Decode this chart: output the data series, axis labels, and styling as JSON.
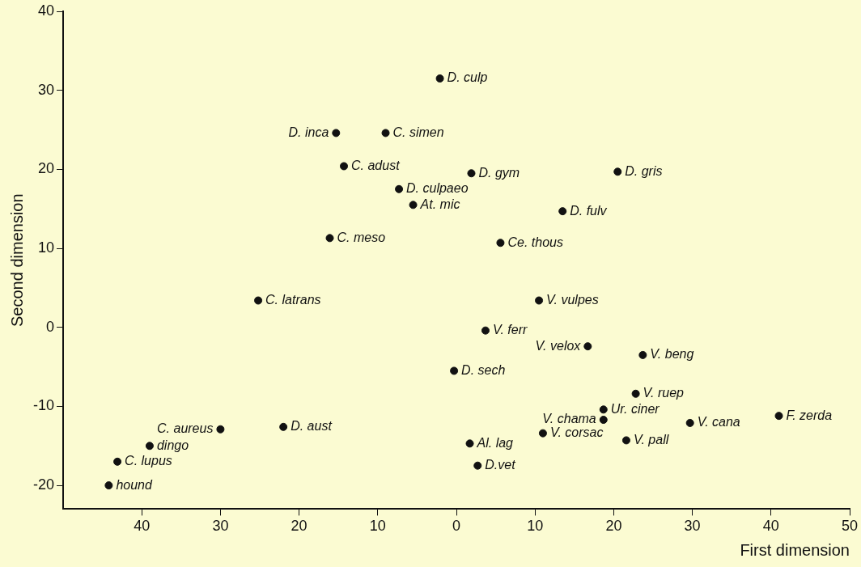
{
  "chart_data": {
    "type": "scatter",
    "xlabel": "First dimension",
    "ylabel": "Second dimension",
    "x": [
      -2.1,
      -15.3,
      -9.0,
      -14.3,
      1.9,
      20.5,
      -7.3,
      -5.5,
      13.5,
      -16.1,
      5.6,
      -25.2,
      10.5,
      3.7,
      16.7,
      23.7,
      -0.3,
      22.8,
      18.7,
      41.0,
      18.7,
      29.7,
      -30.0,
      -22.0,
      11.0,
      21.6,
      1.7,
      -39.0,
      2.7,
      -43.1,
      -44.2
    ],
    "series": [
      {
        "color": "#111111",
        "values": [
          31.5,
          24.6,
          24.6,
          20.4,
          19.5,
          19.7,
          17.5,
          15.5,
          14.7,
          11.3,
          10.7,
          3.4,
          3.4,
          -0.4,
          -2.4,
          -3.5,
          -5.5,
          -8.4,
          -10.4,
          -11.2,
          -11.7,
          -12.1,
          -12.9,
          -12.6,
          -13.4,
          -14.3,
          -14.7,
          -15.0,
          -17.5,
          -17.0,
          -20.0
        ]
      }
    ],
    "annotations": [
      {
        "text": "D. culp",
        "x": -2.1,
        "y": 31.5
      },
      {
        "text": "D. inca",
        "x": -15.3,
        "y": 24.6
      },
      {
        "text": "C. simen",
        "x": -9.0,
        "y": 24.6
      },
      {
        "text": "C. adust",
        "x": -14.3,
        "y": 20.4
      },
      {
        "text": "D. gym",
        "x": 1.9,
        "y": 19.5
      },
      {
        "text": "D. gris",
        "x": 20.5,
        "y": 19.7
      },
      {
        "text": "D. culpaeo",
        "x": -7.3,
        "y": 17.5
      },
      {
        "text": "At. mic",
        "x": -5.5,
        "y": 15.5
      },
      {
        "text": "D. fulv",
        "x": 13.5,
        "y": 14.7
      },
      {
        "text": "C. meso",
        "x": -16.1,
        "y": 11.3
      },
      {
        "text": "Ce. thous",
        "x": 5.6,
        "y": 10.7
      },
      {
        "text": "C. latrans",
        "x": -25.2,
        "y": 3.4
      },
      {
        "text": "V. vulpes",
        "x": 10.5,
        "y": 3.4
      },
      {
        "text": "V. ferr",
        "x": 3.7,
        "y": -0.4
      },
      {
        "text": "V. velox",
        "x": 16.7,
        "y": -2.4
      },
      {
        "text": "V. beng",
        "x": 23.7,
        "y": -3.5
      },
      {
        "text": "D. sech",
        "x": -0.3,
        "y": -5.5
      },
      {
        "text": "V. ruep",
        "x": 22.8,
        "y": -8.4
      },
      {
        "text": "Ur. ciner",
        "x": 18.7,
        "y": -10.4
      },
      {
        "text": "F. zerda",
        "x": 41.0,
        "y": -11.2
      },
      {
        "text": "V. chama",
        "x": 18.7,
        "y": -11.7
      },
      {
        "text": "V. cana",
        "x": 29.7,
        "y": -12.1
      },
      {
        "text": "C. aureus",
        "x": -30.0,
        "y": -12.9
      },
      {
        "text": "D. aust",
        "x": -22.0,
        "y": -12.6
      },
      {
        "text": "V. corsac",
        "x": 11.0,
        "y": -13.4
      },
      {
        "text": "V. pall",
        "x": 21.6,
        "y": -14.3
      },
      {
        "text": "Al. lag",
        "x": 1.7,
        "y": -14.7
      },
      {
        "text": "dingo",
        "x": -39.0,
        "y": -15.0
      },
      {
        "text": "D.vet",
        "x": 2.7,
        "y": -17.5
      },
      {
        "text": "C. lupus",
        "x": -43.1,
        "y": -17.0
      },
      {
        "text": "hound",
        "x": -44.2,
        "y": -20.0
      }
    ],
    "xlim": [
      -50,
      50
    ],
    "xticks": [
      {
        "value": -40,
        "label": "40"
      },
      {
        "value": -30,
        "label": "30"
      },
      {
        "value": -20,
        "label": "20"
      },
      {
        "value": -10,
        "label": "10"
      },
      0,
      10,
      20,
      30,
      40,
      50
    ],
    "ylim": [
      -23,
      40
    ],
    "yticks": [
      -20,
      -10,
      0,
      10,
      20,
      30,
      40
    ],
    "grid": false,
    "legend": false,
    "marker": "circle"
  }
}
